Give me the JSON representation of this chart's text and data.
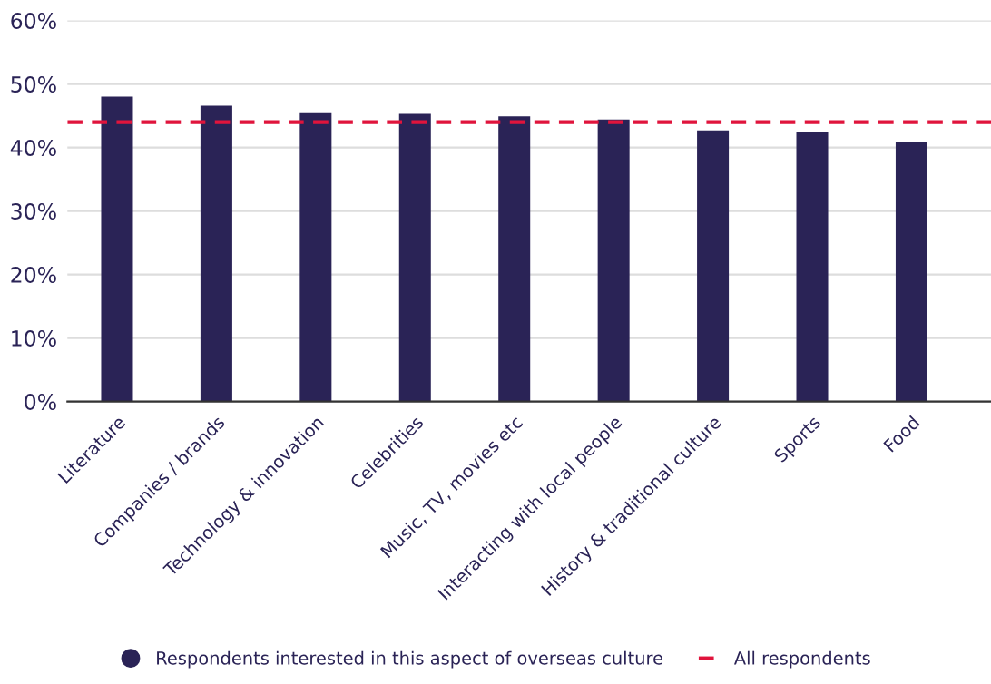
{
  "chart_data": {
    "type": "bar",
    "categories": [
      "Literature",
      "Companies / brands",
      "Technology & innovation",
      "Celebrities",
      "Music, TV, movies etc",
      "Interacting with local people",
      "History & traditional culture",
      "Sports",
      "Food"
    ],
    "series": [
      {
        "name": "Respondents interested in this aspect of overseas culture",
        "color": "#2a2356",
        "values": [
          48,
          46.6,
          45.4,
          45.3,
          44.9,
          44.4,
          42.7,
          42.4,
          40.9
        ]
      }
    ],
    "ref_lines": [
      {
        "axis": "y",
        "value": 44,
        "label": "All respondents",
        "color": "#e0143c",
        "line_style": "dashed"
      }
    ],
    "ylim": [
      0,
      60
    ],
    "yticks": [
      {
        "value": 0,
        "label": "0%"
      },
      {
        "value": 10,
        "label": "10%"
      },
      {
        "value": 20,
        "label": "20%"
      },
      {
        "value": 30,
        "label": "30%"
      },
      {
        "value": 40,
        "label": "40%"
      },
      {
        "value": 50,
        "label": "50%"
      },
      {
        "value": 60,
        "label": "60%"
      }
    ],
    "grid": "y",
    "legend": "bottom"
  }
}
